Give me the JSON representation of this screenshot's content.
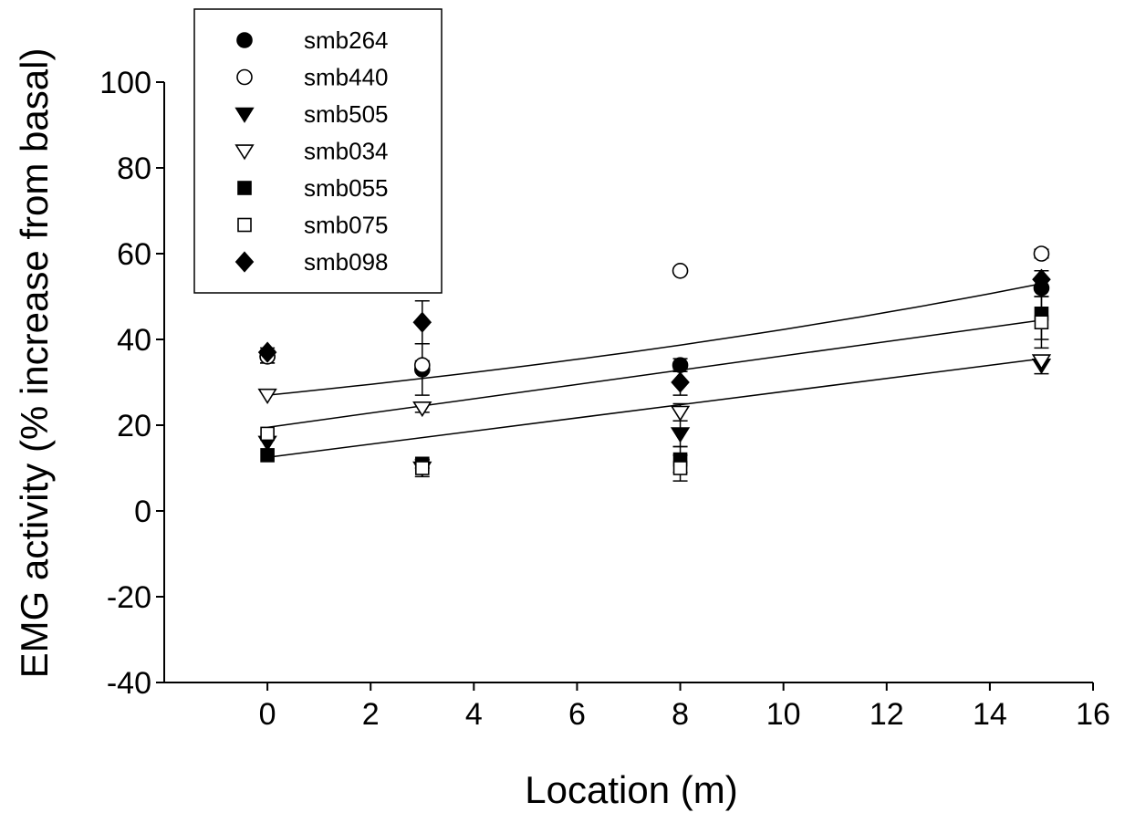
{
  "chart_data": {
    "type": "scatter",
    "xlabel": "Location (m)",
    "ylabel": "EMG activity (% increase from basal)",
    "xlim": [
      -2,
      16
    ],
    "ylim": [
      -40,
      100
    ],
    "xticks": [
      0,
      2,
      4,
      6,
      8,
      10,
      12,
      14,
      16
    ],
    "yticks": [
      -40,
      -20,
      0,
      20,
      40,
      60,
      80,
      100
    ],
    "grid": false,
    "legend_position": "top-left",
    "series": [
      {
        "name": "smb264",
        "marker": "circle-filled",
        "x": [
          0,
          3,
          8,
          15
        ],
        "y": [
          36,
          33,
          34,
          52
        ],
        "yerr": [
          1.5,
          6,
          1.5,
          2
        ]
      },
      {
        "name": "smb440",
        "marker": "circle-open",
        "x": [
          0,
          3,
          8,
          15
        ],
        "y": [
          36,
          34,
          56,
          60
        ],
        "yerr": [
          1.5,
          1,
          0,
          1
        ]
      },
      {
        "name": "smb505",
        "marker": "triangle-down-filled",
        "x": [
          0,
          3,
          8,
          15
        ],
        "y": [
          16,
          10,
          18,
          34
        ],
        "yerr": [
          0,
          0,
          3,
          2
        ]
      },
      {
        "name": "smb034",
        "marker": "triangle-down-open",
        "x": [
          0,
          3,
          8,
          15
        ],
        "y": [
          27,
          24,
          23,
          35
        ],
        "yerr": [
          0,
          1,
          2,
          0
        ]
      },
      {
        "name": "smb055",
        "marker": "square-filled",
        "x": [
          0,
          3,
          8,
          15
        ],
        "y": [
          13,
          11,
          12,
          46
        ],
        "yerr": [
          0,
          1,
          3,
          6
        ]
      },
      {
        "name": "smb075",
        "marker": "square-open",
        "x": [
          0,
          3,
          8,
          15
        ],
        "y": [
          18,
          10,
          10,
          44
        ],
        "yerr": [
          0,
          2,
          3,
          6
        ]
      },
      {
        "name": "smb098",
        "marker": "diamond-filled",
        "x": [
          0,
          3,
          8,
          15
        ],
        "y": [
          37,
          44,
          30,
          54
        ],
        "yerr": [
          1,
          5,
          3,
          2
        ]
      }
    ],
    "fit_lines": [
      {
        "x": [
          0,
          15
        ],
        "y": [
          27,
          53
        ],
        "shape": "curved"
      },
      {
        "x": [
          0,
          15
        ],
        "y": [
          19.5,
          44.5
        ],
        "shape": "linear"
      },
      {
        "x": [
          0,
          15
        ],
        "y": [
          12.5,
          35.5
        ],
        "shape": "linear"
      }
    ]
  }
}
